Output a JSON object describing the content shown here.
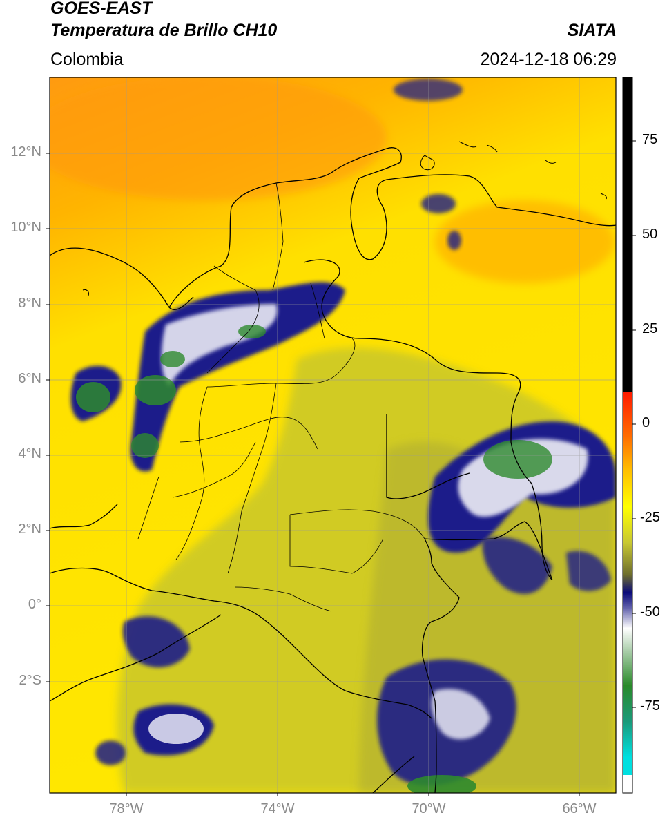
{
  "header": {
    "satellite": "GOES-EAST",
    "product": "Temperatura de Brillo CH10",
    "brand": "SIATA",
    "region": "Colombia",
    "timestamp": "2024-12-18 06:29"
  },
  "map": {
    "lat_ticks": [
      "12°N",
      "10°N",
      "8°N",
      "6°N",
      "4°N",
      "2°N",
      "0°",
      "2°S"
    ],
    "lon_ticks": [
      "78°W",
      "74°W",
      "70°W",
      "66°W"
    ],
    "colors": {
      "warm_sky": "#ffd400",
      "hot_sky": "#ff9a10",
      "mid_cloud": "#c7c72a",
      "cold_cloud": "#1c1c8a",
      "very_cold": "#f2f2f2",
      "coldest": "#2e8a2e"
    }
  },
  "colorbar": {
    "tick_labels": [
      "75",
      "50",
      "25",
      "0",
      "-25",
      "-50",
      "-75"
    ],
    "colors": {
      "black": "#000000",
      "red": "#ff1a00",
      "orange": "#ff8a00",
      "yellow": "#ffff00",
      "olive": "#6e6e2c",
      "navy": "#0a0a7a",
      "white": "#ffffff",
      "green": "#2a8a2a",
      "cyan": "#00e0e0"
    }
  }
}
